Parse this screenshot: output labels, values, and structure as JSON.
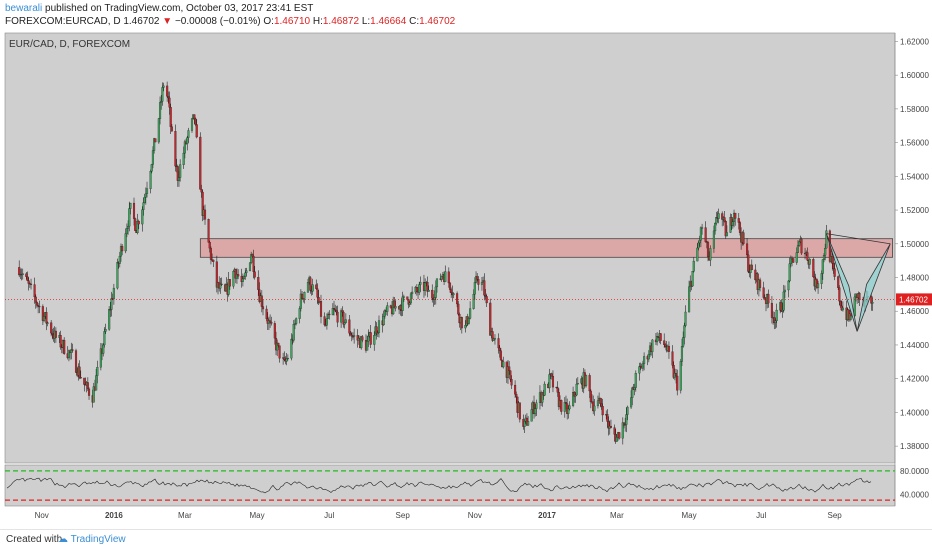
{
  "header": {
    "author": "bewarali",
    "published_text": "published on TradingView.com, October 03, 2017 23:41 EST",
    "symbol": "FOREXCOM:EURCAD, D",
    "last": "1.46702",
    "change_arrow": "▼",
    "change": "−0.00008 (−0.01%)",
    "ohlc_o_label": "O:",
    "ohlc_o": "1.46710",
    "ohlc_h_label": "H:",
    "ohlc_h": "1.46872",
    "ohlc_l_label": "L:",
    "ohlc_l": "1.46664",
    "ohlc_c_label": "C:",
    "ohlc_c": "1.46702"
  },
  "footer": {
    "created_with": "Created with",
    "brand": "TradingView"
  },
  "colors": {
    "pane_bg": "#cfcfcf",
    "up_candle": "#3ea35c",
    "down_candle": "#c0262b",
    "resistance_zone": "#dba7a7",
    "harmonic_fill": "#8fd3d2",
    "price_line": "#e02020",
    "price_tag": "#e02020",
    "rsi_upper": "#22bb22",
    "rsi_lower": "#e02020",
    "axis_text": "#444444",
    "header_link": "#3a8fd6"
  },
  "chart_data": [
    {
      "type": "candlestick",
      "title": "EUR/CAD, D, FOREXCOM",
      "ylim": [
        1.37,
        1.625
      ],
      "y_ticks": [
        "1.62000",
        "1.60000",
        "1.58000",
        "1.56000",
        "1.54000",
        "1.52000",
        "1.50000",
        "1.48000",
        "1.46000",
        "1.44000",
        "1.42000",
        "1.40000",
        "1.38000"
      ],
      "x_ticks": [
        "Nov",
        "2016",
        "Mar",
        "May",
        "Jul",
        "Sep",
        "Nov",
        "2017",
        "Mar",
        "May",
        "Jul",
        "Sep"
      ],
      "current_price": 1.46702,
      "current_price_label": "1.46702",
      "close_path": [
        {
          "x": "2015-10-13",
          "y": 1.486
        },
        {
          "x": "2015-10-28",
          "y": 1.465
        },
        {
          "x": "2015-11-12",
          "y": 1.445
        },
        {
          "x": "2015-11-27",
          "y": 1.433
        },
        {
          "x": "2015-12-08",
          "y": 1.415
        },
        {
          "x": "2015-12-14",
          "y": 1.41
        },
        {
          "x": "2015-12-20",
          "y": 1.43
        },
        {
          "x": "2015-12-31",
          "y": 1.47
        },
        {
          "x": "2016-01-08",
          "y": 1.5
        },
        {
          "x": "2016-01-15",
          "y": 1.52
        },
        {
          "x": "2016-01-20",
          "y": 1.51
        },
        {
          "x": "2016-01-26",
          "y": 1.525
        },
        {
          "x": "2016-02-02",
          "y": 1.55
        },
        {
          "x": "2016-02-07",
          "y": 1.57
        },
        {
          "x": "2016-02-12",
          "y": 1.595
        },
        {
          "x": "2016-02-16",
          "y": 1.585
        },
        {
          "x": "2016-02-20",
          "y": 1.555
        },
        {
          "x": "2016-02-24",
          "y": 1.54
        },
        {
          "x": "2016-03-02",
          "y": 1.56
        },
        {
          "x": "2016-03-09",
          "y": 1.575
        },
        {
          "x": "2016-03-16",
          "y": 1.52
        },
        {
          "x": "2016-03-21",
          "y": 1.5
        },
        {
          "x": "2016-03-28",
          "y": 1.475
        },
        {
          "x": "2016-04-04",
          "y": 1.47
        },
        {
          "x": "2016-04-12",
          "y": 1.485
        },
        {
          "x": "2016-04-19",
          "y": 1.475
        },
        {
          "x": "2016-04-26",
          "y": 1.495
        },
        {
          "x": "2016-05-03",
          "y": 1.47
        },
        {
          "x": "2016-05-10",
          "y": 1.455
        },
        {
          "x": "2016-05-17",
          "y": 1.44
        },
        {
          "x": "2016-05-24",
          "y": 1.428
        },
        {
          "x": "2016-05-28",
          "y": 1.435
        },
        {
          "x": "2016-06-06",
          "y": 1.465
        },
        {
          "x": "2016-06-13",
          "y": 1.478
        },
        {
          "x": "2016-06-20",
          "y": 1.47
        },
        {
          "x": "2016-06-27",
          "y": 1.45
        },
        {
          "x": "2016-07-04",
          "y": 1.46
        },
        {
          "x": "2016-07-13",
          "y": 1.455
        },
        {
          "x": "2016-07-21",
          "y": 1.445
        },
        {
          "x": "2016-08-01",
          "y": 1.44
        },
        {
          "x": "2016-08-10",
          "y": 1.45
        },
        {
          "x": "2016-08-20",
          "y": 1.46
        },
        {
          "x": "2016-09-01",
          "y": 1.465
        },
        {
          "x": "2016-09-10",
          "y": 1.47
        },
        {
          "x": "2016-09-20",
          "y": 1.475
        },
        {
          "x": "2016-09-25",
          "y": 1.468
        },
        {
          "x": "2016-10-05",
          "y": 1.483
        },
        {
          "x": "2016-10-12",
          "y": 1.475
        },
        {
          "x": "2016-10-20",
          "y": 1.455
        },
        {
          "x": "2016-10-24",
          "y": 1.45
        },
        {
          "x": "2016-10-31",
          "y": 1.47
        },
        {
          "x": "2016-11-03",
          "y": 1.48
        },
        {
          "x": "2016-11-08",
          "y": 1.475
        },
        {
          "x": "2016-11-14",
          "y": 1.45
        },
        {
          "x": "2016-11-21",
          "y": 1.435
        },
        {
          "x": "2016-11-28",
          "y": 1.425
        },
        {
          "x": "2016-12-05",
          "y": 1.41
        },
        {
          "x": "2016-12-12",
          "y": 1.39
        },
        {
          "x": "2016-12-18",
          "y": 1.4
        },
        {
          "x": "2016-12-27",
          "y": 1.41
        },
        {
          "x": "2017-01-04",
          "y": 1.42
        },
        {
          "x": "2017-01-12",
          "y": 1.405
        },
        {
          "x": "2017-01-19",
          "y": 1.4
        },
        {
          "x": "2017-01-26",
          "y": 1.415
        },
        {
          "x": "2017-02-02",
          "y": 1.42
        },
        {
          "x": "2017-02-09",
          "y": 1.405
        },
        {
          "x": "2017-02-16",
          "y": 1.405
        },
        {
          "x": "2017-02-23",
          "y": 1.39
        },
        {
          "x": "2017-03-01",
          "y": 1.385
        },
        {
          "x": "2017-03-10",
          "y": 1.4
        },
        {
          "x": "2017-03-17",
          "y": 1.42
        },
        {
          "x": "2017-03-27",
          "y": 1.435
        },
        {
          "x": "2017-04-03",
          "y": 1.445
        },
        {
          "x": "2017-04-11",
          "y": 1.44
        },
        {
          "x": "2017-04-17",
          "y": 1.425
        },
        {
          "x": "2017-04-22",
          "y": 1.415
        },
        {
          "x": "2017-04-29",
          "y": 1.465
        },
        {
          "x": "2017-05-06",
          "y": 1.49
        },
        {
          "x": "2017-05-12",
          "y": 1.51
        },
        {
          "x": "2017-05-18",
          "y": 1.49
        },
        {
          "x": "2017-05-26",
          "y": 1.52
        },
        {
          "x": "2017-06-02",
          "y": 1.505
        },
        {
          "x": "2017-06-08",
          "y": 1.52
        },
        {
          "x": "2017-06-14",
          "y": 1.505
        },
        {
          "x": "2017-06-21",
          "y": 1.485
        },
        {
          "x": "2017-06-26",
          "y": 1.48
        },
        {
          "x": "2017-07-03",
          "y": 1.47
        },
        {
          "x": "2017-07-10",
          "y": 1.46
        },
        {
          "x": "2017-07-13",
          "y": 1.455
        },
        {
          "x": "2017-07-19",
          "y": 1.465
        },
        {
          "x": "2017-07-27",
          "y": 1.49
        },
        {
          "x": "2017-08-03",
          "y": 1.5
        },
        {
          "x": "2017-08-11",
          "y": 1.49
        },
        {
          "x": "2017-08-16",
          "y": 1.475
        },
        {
          "x": "2017-08-21",
          "y": 1.485
        },
        {
          "x": "2017-08-25",
          "y": 1.505
        },
        {
          "x": "2017-08-30",
          "y": 1.485
        },
        {
          "x": "2017-09-06",
          "y": 1.465
        },
        {
          "x": "2017-09-13",
          "y": 1.455
        },
        {
          "x": "2017-09-20",
          "y": 1.47
        },
        {
          "x": "2017-09-26",
          "y": 1.463
        },
        {
          "x": "2017-10-03",
          "y": 1.467
        }
      ],
      "zones": [
        {
          "name": "resistance",
          "from": "2016-03-14",
          "to": "2017-10-20",
          "y_low": 1.492,
          "y_high": 1.503
        }
      ],
      "pattern": {
        "type": "harmonic",
        "points": [
          {
            "x": "2017-08-25",
            "y": 1.506
          },
          {
            "x": "2017-09-13",
            "y": 1.475
          },
          {
            "x": "2017-09-20",
            "y": 1.448
          },
          {
            "x": "2017-09-28",
            "y": 1.476
          },
          {
            "x": "2017-10-18",
            "y": 1.5
          }
        ]
      }
    },
    {
      "type": "line",
      "indicator": "RSI",
      "ylim": [
        20,
        90
      ],
      "y_ticks": [
        "80.0000",
        "40.0000"
      ],
      "levels": [
        80,
        30
      ],
      "mean": 55,
      "amplitude": 14
    }
  ]
}
